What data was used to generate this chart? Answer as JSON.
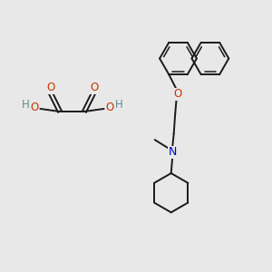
{
  "background_color": "#e8e8e8",
  "bond_color": "#1a1a1a",
  "oxygen_color": "#cc3300",
  "nitrogen_color": "#0000cc",
  "teal_color": "#5a9090",
  "figsize": [
    3.0,
    3.0
  ],
  "dpi": 100,
  "xlim": [
    0,
    10
  ],
  "ylim": [
    0,
    10
  ]
}
